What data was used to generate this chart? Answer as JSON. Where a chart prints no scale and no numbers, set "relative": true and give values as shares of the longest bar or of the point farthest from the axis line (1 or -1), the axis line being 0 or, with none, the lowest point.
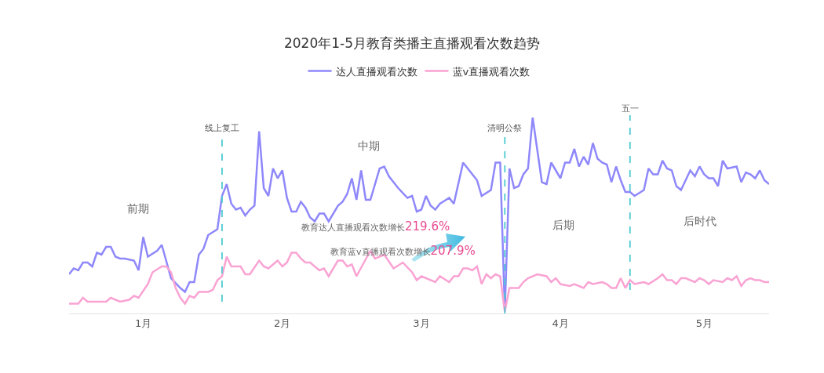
{
  "chart_data": {
    "type": "line",
    "title": "2020年1-5月教育类播主直播观看次数趋势",
    "relative": true,
    "legend": "top",
    "grid": false,
    "marker": "none",
    "line_style": "solid",
    "xlim": [
      "2020-01-01",
      "2020-05-31"
    ],
    "xticks": [
      {
        "value": "2020-01-17",
        "label": "1月"
      },
      {
        "value": "2020-02-16",
        "label": "2月"
      },
      {
        "value": "2020-03-17",
        "label": "3月"
      },
      {
        "value": "2020-04-16",
        "label": "4月"
      },
      {
        "value": "2020-05-17",
        "label": "5月"
      }
    ],
    "ref_lines": [
      {
        "axis": "x",
        "value": "2020-02-03",
        "label": "线上复工",
        "color": "#4ecbd0",
        "line_style": "dashed"
      },
      {
        "axis": "x",
        "value": "2020-04-04",
        "label": "清明公祭",
        "color": "#4ecbd0",
        "line_style": "dashed"
      },
      {
        "axis": "x",
        "value": "2020-05-01",
        "label": "五一",
        "color": "#4ecbd0",
        "line_style": "dashed"
      }
    ],
    "annotations": [
      "前期",
      "中期",
      "后期",
      "后时代",
      "教育达人直播观看次数增长219.6%",
      "教育蓝v直播观看次数增长207.9%"
    ],
    "series": [
      {
        "name": "达人直播观看次数",
        "color": "#8f88fb",
        "x": [
          "2020-01-01",
          "2020-01-02",
          "2020-01-03",
          "2020-01-04",
          "2020-01-05",
          "2020-01-06",
          "2020-01-07",
          "2020-01-08",
          "2020-01-09",
          "2020-01-10",
          "2020-01-11",
          "2020-01-12",
          "2020-01-13",
          "2020-01-15",
          "2020-01-16",
          "2020-01-17",
          "2020-01-18",
          "2020-01-20",
          "2020-01-21",
          "2020-01-23",
          "2020-01-25",
          "2020-01-26",
          "2020-01-27",
          "2020-01-28",
          "2020-01-29",
          "2020-01-30",
          "2020-01-31",
          "2020-02-02",
          "2020-02-03",
          "2020-02-04",
          "2020-02-05",
          "2020-02-06",
          "2020-02-07",
          "2020-02-08",
          "2020-02-09",
          "2020-02-10",
          "2020-02-11",
          "2020-02-12",
          "2020-02-13",
          "2020-02-14",
          "2020-02-15",
          "2020-02-16",
          "2020-02-17",
          "2020-02-18",
          "2020-02-19",
          "2020-02-20",
          "2020-02-21",
          "2020-02-22",
          "2020-02-23",
          "2020-02-24",
          "2020-02-25",
          "2020-02-26",
          "2020-02-28",
          "2020-02-29",
          "2020-03-01",
          "2020-03-02",
          "2020-03-03",
          "2020-03-04",
          "2020-03-05",
          "2020-03-06",
          "2020-03-08",
          "2020-03-09",
          "2020-03-10",
          "2020-03-12",
          "2020-03-14",
          "2020-03-15",
          "2020-03-16",
          "2020-03-17",
          "2020-03-18",
          "2020-03-19",
          "2020-03-20",
          "2020-03-21",
          "2020-03-23",
          "2020-03-24",
          "2020-03-26",
          "2020-03-28",
          "2020-03-29",
          "2020-03-30",
          "2020-04-01",
          "2020-04-02",
          "2020-04-03",
          "2020-04-04",
          "2020-04-05",
          "2020-04-06",
          "2020-04-07",
          "2020-04-08",
          "2020-04-09",
          "2020-04-10",
          "2020-04-12",
          "2020-04-13",
          "2020-04-14",
          "2020-04-16",
          "2020-04-17",
          "2020-04-18",
          "2020-04-19",
          "2020-04-20",
          "2020-04-21",
          "2020-04-22",
          "2020-04-23",
          "2020-04-24",
          "2020-04-25",
          "2020-04-26",
          "2020-04-27",
          "2020-04-28",
          "2020-04-29",
          "2020-04-30",
          "2020-05-01",
          "2020-05-02",
          "2020-05-04",
          "2020-05-05",
          "2020-05-06",
          "2020-05-07",
          "2020-05-08",
          "2020-05-09",
          "2020-05-10",
          "2020-05-11",
          "2020-05-12",
          "2020-05-14",
          "2020-05-15",
          "2020-05-16",
          "2020-05-17",
          "2020-05-18",
          "2020-05-19",
          "2020-05-20",
          "2020-05-21",
          "2020-05-22",
          "2020-05-24",
          "2020-05-25",
          "2020-05-26",
          "2020-05-27",
          "2020-05-28",
          "2020-05-29",
          "2020-05-30",
          "2020-05-31"
        ],
        "values": [
          0.2,
          0.23,
          0.22,
          0.26,
          0.26,
          0.24,
          0.31,
          0.3,
          0.34,
          0.34,
          0.29,
          0.28,
          0.28,
          0.27,
          0.22,
          0.39,
          0.29,
          0.32,
          0.35,
          0.18,
          0.13,
          0.11,
          0.16,
          0.16,
          0.3,
          0.33,
          0.4,
          0.43,
          0.6,
          0.66,
          0.56,
          0.53,
          0.54,
          0.5,
          0.53,
          0.55,
          0.93,
          0.64,
          0.6,
          0.74,
          0.69,
          0.73,
          0.59,
          0.52,
          0.52,
          0.57,
          0.54,
          0.49,
          0.47,
          0.51,
          0.51,
          0.47,
          0.55,
          0.57,
          0.61,
          0.69,
          0.58,
          0.73,
          0.58,
          0.58,
          0.74,
          0.75,
          0.7,
          0.64,
          0.59,
          0.6,
          0.52,
          0.53,
          0.6,
          0.55,
          0.53,
          0.56,
          0.59,
          0.56,
          0.77,
          0.71,
          0.68,
          0.6,
          0.63,
          0.77,
          0.77,
          0.01,
          0.74,
          0.64,
          0.65,
          0.71,
          0.74,
          1.0,
          0.67,
          0.66,
          0.77,
          0.69,
          0.77,
          0.77,
          0.84,
          0.75,
          0.8,
          0.76,
          0.87,
          0.79,
          0.77,
          0.76,
          0.67,
          0.75,
          0.68,
          0.62,
          0.62,
          0.6,
          0.63,
          0.74,
          0.71,
          0.71,
          0.78,
          0.74,
          0.73,
          0.65,
          0.63,
          0.73,
          0.7,
          0.75,
          0.71,
          0.69,
          0.69,
          0.65,
          0.78,
          0.74,
          0.75,
          0.67,
          0.72,
          0.71,
          0.69,
          0.73,
          0.68,
          0.66
        ]
      },
      {
        "name": "蓝v直播观看次数",
        "color": "#f9a3d3",
        "x": [
          "2020-01-01",
          "2020-01-02",
          "2020-01-03",
          "2020-01-04",
          "2020-01-05",
          "2020-01-07",
          "2020-01-08",
          "2020-01-09",
          "2020-01-10",
          "2020-01-12",
          "2020-01-14",
          "2020-01-15",
          "2020-01-16",
          "2020-01-18",
          "2020-01-19",
          "2020-01-21",
          "2020-01-22",
          "2020-01-23",
          "2020-01-24",
          "2020-01-25",
          "2020-01-26",
          "2020-01-27",
          "2020-01-28",
          "2020-01-29",
          "2020-01-30",
          "2020-01-31",
          "2020-02-01",
          "2020-02-02",
          "2020-02-03",
          "2020-02-04",
          "2020-02-05",
          "2020-02-07",
          "2020-02-08",
          "2020-02-09",
          "2020-02-11",
          "2020-02-12",
          "2020-02-13",
          "2020-02-15",
          "2020-02-16",
          "2020-02-17",
          "2020-02-18",
          "2020-02-19",
          "2020-02-20",
          "2020-02-21",
          "2020-02-22",
          "2020-02-24",
          "2020-02-25",
          "2020-02-26",
          "2020-02-28",
          "2020-02-29",
          "2020-03-01",
          "2020-03-02",
          "2020-03-03",
          "2020-03-06",
          "2020-03-07",
          "2020-03-09",
          "2020-03-11",
          "2020-03-13",
          "2020-03-15",
          "2020-03-16",
          "2020-03-17",
          "2020-03-20",
          "2020-03-21",
          "2020-03-23",
          "2020-03-24",
          "2020-03-25",
          "2020-03-26",
          "2020-03-27",
          "2020-03-28",
          "2020-03-29",
          "2020-03-30",
          "2020-03-31",
          "2020-04-01",
          "2020-04-02",
          "2020-04-03",
          "2020-04-04",
          "2020-04-05",
          "2020-04-07",
          "2020-04-08",
          "2020-04-09",
          "2020-04-11",
          "2020-04-13",
          "2020-04-14",
          "2020-04-15",
          "2020-04-16",
          "2020-04-18",
          "2020-04-19",
          "2020-04-21",
          "2020-04-22",
          "2020-04-23",
          "2020-04-25",
          "2020-04-26",
          "2020-04-27",
          "2020-04-28",
          "2020-04-29",
          "2020-04-30",
          "2020-05-01",
          "2020-05-02",
          "2020-05-04",
          "2020-05-05",
          "2020-05-07",
          "2020-05-08",
          "2020-05-09",
          "2020-05-10",
          "2020-05-11",
          "2020-05-12",
          "2020-05-13",
          "2020-05-15",
          "2020-05-16",
          "2020-05-17",
          "2020-05-18",
          "2020-05-19",
          "2020-05-21",
          "2020-05-22",
          "2020-05-23",
          "2020-05-24",
          "2020-05-25",
          "2020-05-26",
          "2020-05-27",
          "2020-05-28",
          "2020-05-29",
          "2020-05-30",
          "2020-05-31"
        ],
        "values": [
          0.05,
          0.05,
          0.05,
          0.08,
          0.06,
          0.06,
          0.06,
          0.06,
          0.08,
          0.06,
          0.07,
          0.09,
          0.08,
          0.15,
          0.21,
          0.24,
          0.24,
          0.21,
          0.13,
          0.08,
          0.05,
          0.09,
          0.08,
          0.11,
          0.11,
          0.11,
          0.12,
          0.17,
          0.19,
          0.29,
          0.24,
          0.24,
          0.2,
          0.2,
          0.27,
          0.24,
          0.23,
          0.27,
          0.24,
          0.26,
          0.31,
          0.31,
          0.28,
          0.26,
          0.26,
          0.22,
          0.23,
          0.19,
          0.27,
          0.27,
          0.24,
          0.25,
          0.19,
          0.32,
          0.28,
          0.3,
          0.23,
          0.26,
          0.21,
          0.17,
          0.19,
          0.16,
          0.19,
          0.16,
          0.19,
          0.19,
          0.23,
          0.23,
          0.22,
          0.24,
          0.15,
          0.2,
          0.18,
          0.2,
          0.19,
          0.01,
          0.13,
          0.13,
          0.16,
          0.18,
          0.2,
          0.19,
          0.16,
          0.18,
          0.15,
          0.14,
          0.15,
          0.13,
          0.16,
          0.15,
          0.16,
          0.15,
          0.13,
          0.13,
          0.18,
          0.13,
          0.17,
          0.15,
          0.16,
          0.15,
          0.18,
          0.2,
          0.17,
          0.17,
          0.15,
          0.18,
          0.18,
          0.16,
          0.18,
          0.17,
          0.15,
          0.17,
          0.16,
          0.18,
          0.17,
          0.19,
          0.14,
          0.17,
          0.18,
          0.17,
          0.17,
          0.16,
          0.16
        ]
      }
    ]
  }
}
